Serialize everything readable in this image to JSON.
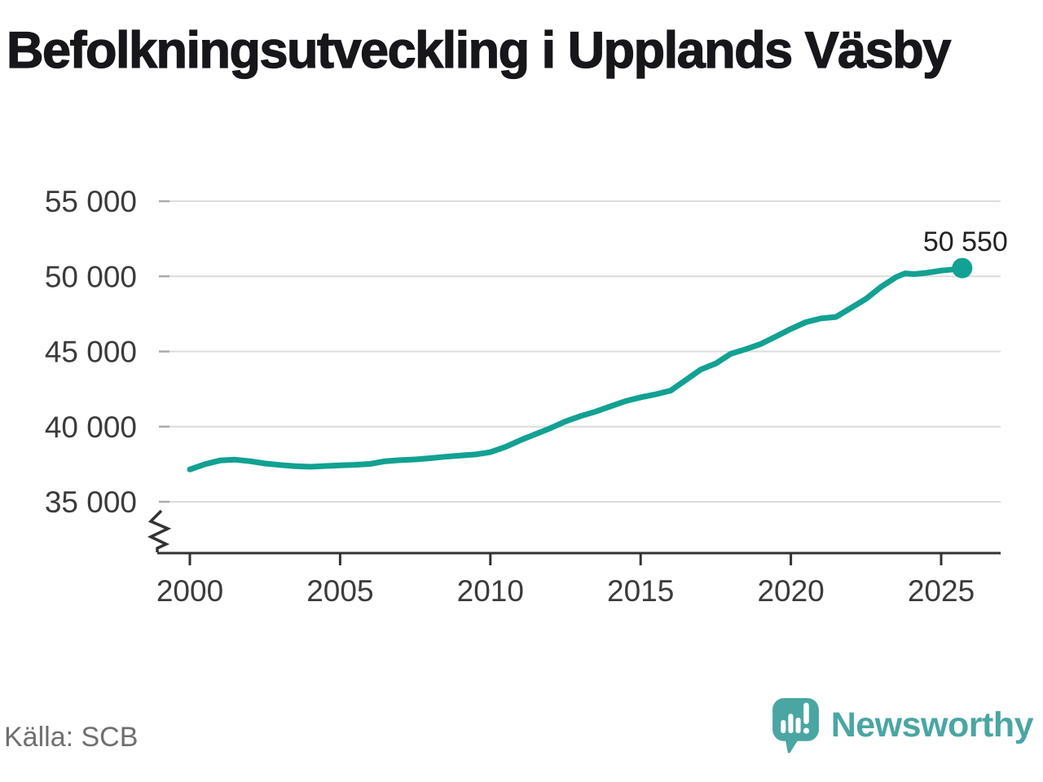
{
  "title": {
    "text": "Befolkningsutveckling i Upplands Väsby"
  },
  "source": {
    "text": "Källa: SCB"
  },
  "branding": {
    "name": "Newsworthy",
    "icon": "newsworthy-speech-bubble-bar-chart-icon",
    "color": "#4aa6a3"
  },
  "chart_data": {
    "type": "line",
    "title": "Befolkningsutveckling i Upplands Väsby",
    "xlabel": "",
    "ylabel": "",
    "x_ticks": [
      2000,
      2005,
      2010,
      2015,
      2020,
      2025
    ],
    "x_tick_labels": [
      "2000",
      "2005",
      "2010",
      "2015",
      "2020",
      "2025"
    ],
    "y_ticks": [
      35000,
      40000,
      45000,
      50000,
      55000
    ],
    "y_tick_labels": [
      "35 000",
      "40 000",
      "45 000",
      "50 000",
      "55 000"
    ],
    "x_range": [
      1999,
      2027
    ],
    "y_range_shown": [
      35000,
      55000
    ],
    "y_axis_break": true,
    "grid": "horizontal",
    "legend": "none",
    "line_color": "#12a192",
    "grid_color": "#dcdcdc",
    "tick_stub_color": "#ababab",
    "axis_color": "#333333",
    "tick_label_color": "#3b3b3b",
    "end_label": {
      "text": "50 550",
      "value": 50550,
      "color": "#222222"
    },
    "series": [
      {
        "points": [
          [
            2000.0,
            37150
          ],
          [
            2000.5,
            37500
          ],
          [
            2001.0,
            37750
          ],
          [
            2001.5,
            37800
          ],
          [
            2002.0,
            37700
          ],
          [
            2002.5,
            37550
          ],
          [
            2003.0,
            37450
          ],
          [
            2003.5,
            37370
          ],
          [
            2004.0,
            37330
          ],
          [
            2004.5,
            37380
          ],
          [
            2005.0,
            37430
          ],
          [
            2005.5,
            37460
          ],
          [
            2006.0,
            37520
          ],
          [
            2006.5,
            37700
          ],
          [
            2007.0,
            37770
          ],
          [
            2007.5,
            37820
          ],
          [
            2008.0,
            37900
          ],
          [
            2008.5,
            38000
          ],
          [
            2009.0,
            38080
          ],
          [
            2009.5,
            38150
          ],
          [
            2010.0,
            38300
          ],
          [
            2010.5,
            38650
          ],
          [
            2011.0,
            39100
          ],
          [
            2011.5,
            39500
          ],
          [
            2012.0,
            39900
          ],
          [
            2012.5,
            40350
          ],
          [
            2013.0,
            40700
          ],
          [
            2013.5,
            41000
          ],
          [
            2014.0,
            41350
          ],
          [
            2014.5,
            41700
          ],
          [
            2015.0,
            41950
          ],
          [
            2015.5,
            42150
          ],
          [
            2016.0,
            42400
          ],
          [
            2016.5,
            43100
          ],
          [
            2017.0,
            43800
          ],
          [
            2017.5,
            44200
          ],
          [
            2018.0,
            44850
          ],
          [
            2018.5,
            45150
          ],
          [
            2019.0,
            45500
          ],
          [
            2019.5,
            46000
          ],
          [
            2020.0,
            46500
          ],
          [
            2020.5,
            46950
          ],
          [
            2021.0,
            47200
          ],
          [
            2021.5,
            47300
          ],
          [
            2022.0,
            47900
          ],
          [
            2022.5,
            48500
          ],
          [
            2023.0,
            49300
          ],
          [
            2023.5,
            49950
          ],
          [
            2023.8,
            50200
          ],
          [
            2024.1,
            50150
          ],
          [
            2024.5,
            50230
          ],
          [
            2025.0,
            50380
          ],
          [
            2025.4,
            50460
          ],
          [
            2025.7,
            50550
          ]
        ]
      }
    ]
  }
}
